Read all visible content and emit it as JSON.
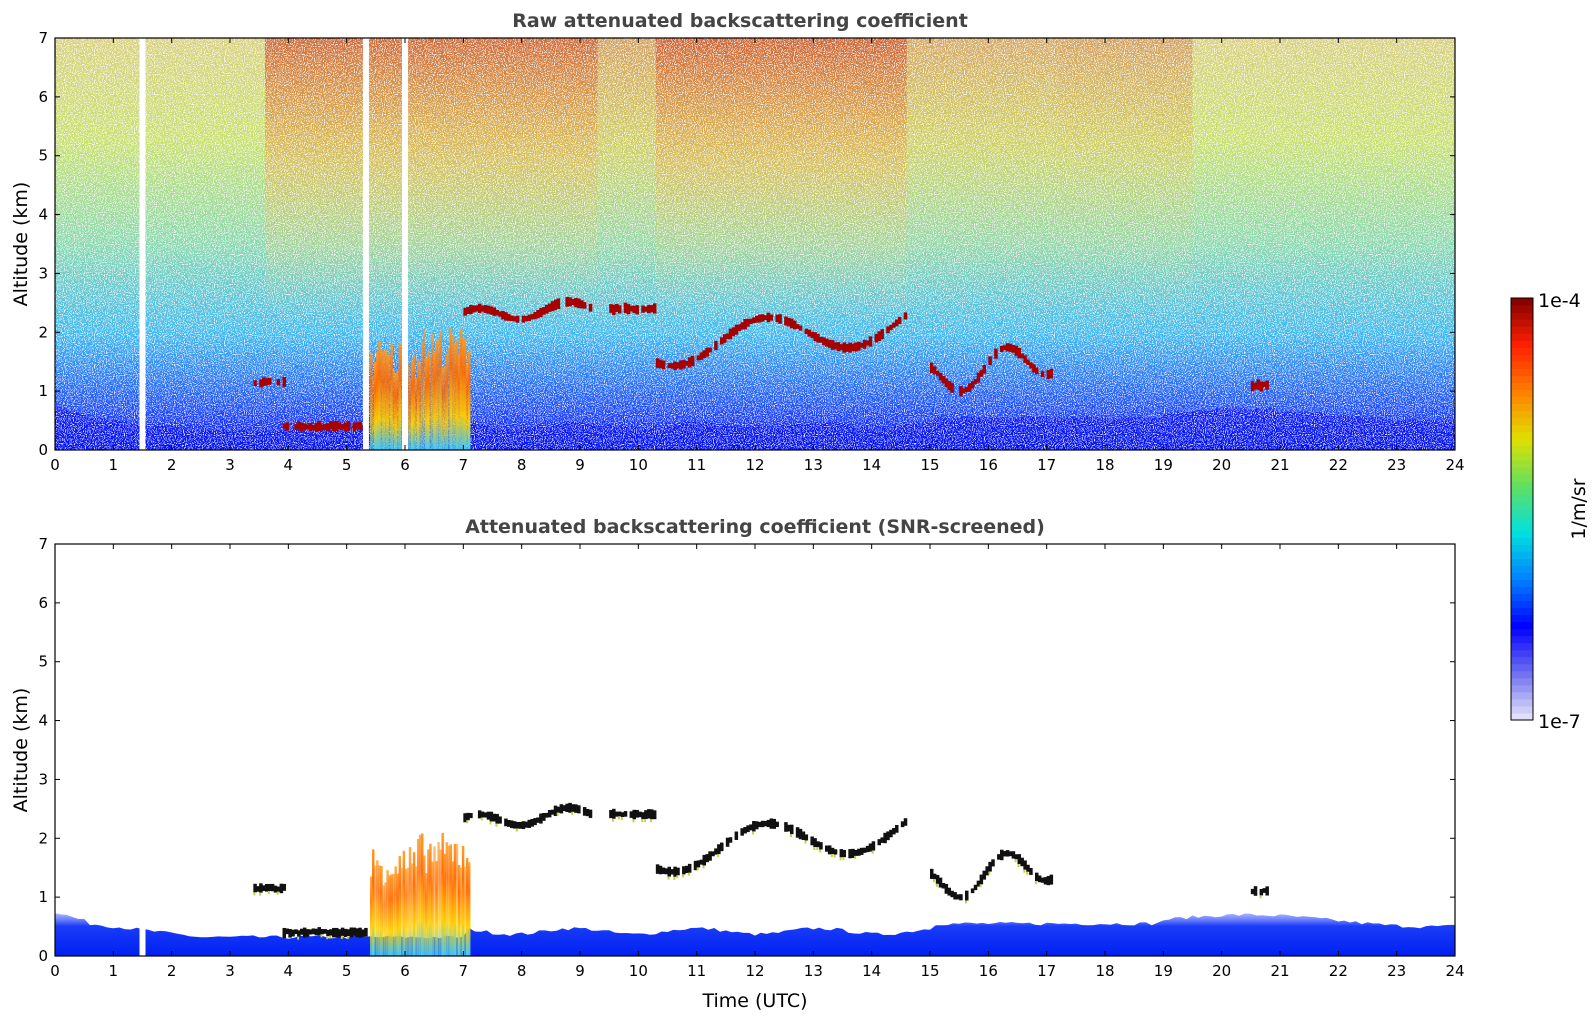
{
  "chart_data": [
    {
      "type": "heatmap",
      "title": "Raw attenuated backscattering coefficient",
      "xlabel": "",
      "ylabel": "Altitude (km)",
      "xlim": [
        0,
        24
      ],
      "ylim": [
        0,
        7
      ],
      "xticks": [
        "0",
        "1",
        "2",
        "3",
        "4",
        "5",
        "6",
        "7",
        "8",
        "9",
        "10",
        "11",
        "12",
        "13",
        "14",
        "15",
        "16",
        "17",
        "18",
        "19",
        "20",
        "21",
        "22",
        "23",
        "24"
      ],
      "yticks": [
        "0",
        "1",
        "2",
        "3",
        "4",
        "5",
        "6",
        "7"
      ],
      "data_gaps_utc": [
        1.5,
        5.33,
        6.0
      ],
      "features": [
        {
          "kind": "cloud_layer",
          "x": [
            7.0,
            9.2
          ],
          "altitude_km": [
            2.15,
            2.55
          ]
        },
        {
          "kind": "cloud_layer",
          "x": [
            9.5,
            10.3
          ],
          "altitude_km": [
            2.35,
            2.45
          ]
        },
        {
          "kind": "cloud_layer",
          "x": [
            10.3,
            14.6
          ],
          "altitude_km": [
            1.4,
            2.5
          ]
        },
        {
          "kind": "cloud_layer",
          "x": [
            3.9,
            5.3
          ],
          "altitude_km": [
            0.35,
            0.45
          ]
        },
        {
          "kind": "cloud_layer",
          "x": [
            3.4,
            3.9
          ],
          "altitude_km": [
            1.1,
            1.2
          ]
        },
        {
          "kind": "cloud_layer",
          "x": [
            15.0,
            17.1
          ],
          "altitude_km": [
            0.9,
            1.9
          ]
        },
        {
          "kind": "cloud_layer",
          "x": [
            20.5,
            20.8
          ],
          "altitude_km": [
            1.05,
            1.15
          ]
        },
        {
          "kind": "precipitation",
          "x": [
            5.4,
            7.1
          ],
          "altitude_km": [
            0.0,
            1.9
          ]
        },
        {
          "kind": "boundary_layer",
          "x": [
            0,
            24
          ],
          "altitude_km": [
            0.0,
            0.45
          ]
        }
      ]
    },
    {
      "type": "heatmap",
      "title": "Attenuated backscattering coefficient (SNR-screened)",
      "xlabel": "Time (UTC)",
      "ylabel": "Altitude (km)",
      "xlim": [
        0,
        24
      ],
      "ylim": [
        0,
        7
      ],
      "xticks": [
        "0",
        "1",
        "2",
        "3",
        "4",
        "5",
        "6",
        "7",
        "8",
        "9",
        "10",
        "11",
        "12",
        "13",
        "14",
        "15",
        "16",
        "17",
        "18",
        "19",
        "20",
        "21",
        "22",
        "23",
        "24"
      ],
      "yticks": [
        "0",
        "1",
        "2",
        "3",
        "4",
        "5",
        "6",
        "7"
      ],
      "data_gaps_utc": [
        1.5
      ]
    }
  ],
  "colorbar": {
    "label": "1/m/sr",
    "max_label": "1e-4",
    "min_label": "1e-7",
    "scale": "log",
    "range": [
      1e-07,
      0.0001
    ],
    "colors": [
      "#e8e8f8",
      "#7070f0",
      "#0000ff",
      "#0080ff",
      "#00e0e0",
      "#60e060",
      "#e0e000",
      "#ff8000",
      "#ff2000",
      "#800000"
    ]
  }
}
